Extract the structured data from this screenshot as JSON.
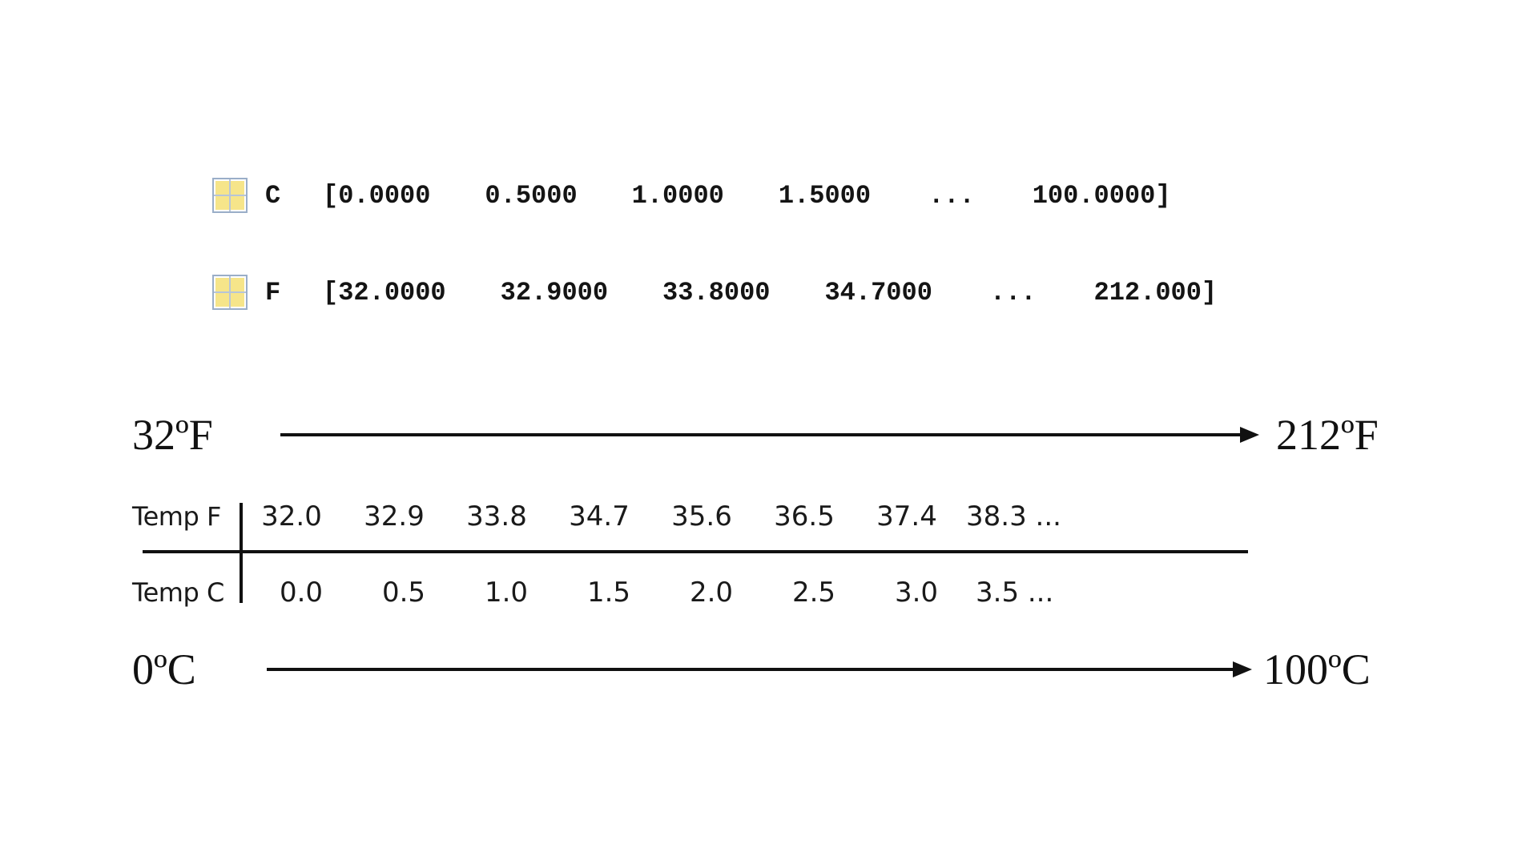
{
  "variables": [
    {
      "name": "C",
      "icon": "matrix-variable-icon",
      "values": [
        "[0.0000",
        "0.5000",
        "1.0000",
        "1.5000",
        "...",
        "100.0000]"
      ]
    },
    {
      "name": "F",
      "icon": "matrix-variable-icon",
      "values": [
        "[32.0000",
        "32.9000",
        "33.8000",
        "34.7000",
        "...",
        "212.000]"
      ]
    }
  ],
  "scales": {
    "fahrenheit": {
      "start": "32ºF",
      "end": "212ºF"
    },
    "celsius": {
      "start": "0ºC",
      "end": "100ºC"
    }
  },
  "table": {
    "top_label": "Temp F",
    "bottom_label": "Temp C",
    "top_values": [
      "32.0",
      "32.9",
      "33.8",
      "34.7",
      "35.6",
      "36.5",
      "37.4",
      "38.3 ..."
    ],
    "bottom_values": [
      "0.0",
      "0.5",
      "1.0",
      "1.5",
      "2.0",
      "2.5",
      "3.0",
      "3.5 ..."
    ]
  },
  "colors": {
    "icon_fill": "#f6e58a",
    "icon_border": "#9aaec8",
    "ink": "#111111"
  }
}
